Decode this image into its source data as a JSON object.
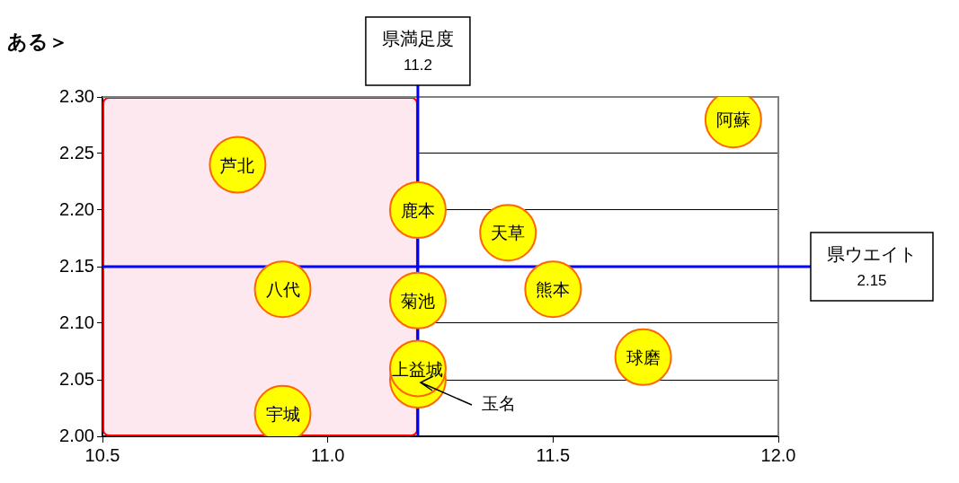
{
  "chart_data": {
    "type": "scatter",
    "title": "ある＞",
    "x": [
      11.9,
      10.8,
      11.2,
      11.4,
      10.9,
      11.2,
      11.5,
      11.7,
      11.2,
      11.2,
      10.9
    ],
    "series": [
      {
        "color": "#ffff00",
        "values": [
          2.28,
          2.24,
          2.2,
          2.18,
          2.13,
          2.12,
          2.13,
          2.07,
          2.05,
          2.06,
          2.02
        ]
      }
    ],
    "marker": "circle",
    "annotations": [
      {
        "text": "阿蘇",
        "x": 11.9,
        "y": 2.28
      },
      {
        "text": "芦北",
        "x": 10.8,
        "y": 2.24
      },
      {
        "text": "鹿本",
        "x": 11.2,
        "y": 2.2
      },
      {
        "text": "天草",
        "x": 11.4,
        "y": 2.18
      },
      {
        "text": "八代",
        "x": 10.9,
        "y": 2.13
      },
      {
        "text": "菊池",
        "x": 11.2,
        "y": 2.12
      },
      {
        "text": "熊本",
        "x": 11.5,
        "y": 2.13
      },
      {
        "text": "球磨",
        "x": 11.7,
        "y": 2.07
      },
      {
        "text": "上益城",
        "x": 11.2,
        "y": 2.06
      },
      {
        "text": "玉名",
        "x": 11.2,
        "y": 2.05
      },
      {
        "text": "宇城",
        "x": 10.9,
        "y": 2.02
      }
    ],
    "xlim": [
      10.5,
      12.0
    ],
    "xticks": [
      10.5,
      {
        "value": 11,
        "label": "11.0"
      },
      11.5,
      {
        "value": 12,
        "label": "12.0"
      }
    ],
    "ylim": [
      2.0,
      2.3
    ],
    "yticks": [
      {
        "value": 2.0,
        "label": "2.00"
      },
      2.05,
      {
        "value": 2.1,
        "label": "2.10"
      },
      2.15,
      {
        "value": 2.2,
        "label": "2.20"
      },
      2.25,
      {
        "value": 2.3,
        "label": "2.30"
      }
    ],
    "grid": "y",
    "legend": false,
    "ref_lines": [
      {
        "axis": "x",
        "value": 11.2,
        "label": "県満足度\n11.2",
        "color": "#0000ff"
      },
      {
        "axis": "y",
        "value": 2.15,
        "label": "県ウエイト\n2.15",
        "color": "#0000ff"
      }
    ],
    "bands": [
      {
        "axis": "x",
        "from": 10.5,
        "to": 11.2,
        "color": "#fde8f0"
      }
    ]
  }
}
